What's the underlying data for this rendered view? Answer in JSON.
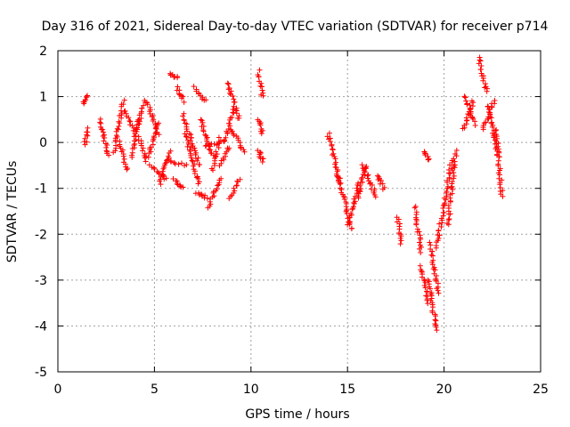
{
  "chart_data": {
    "type": "scatter",
    "title": "Day 316 of 2021, Sidereal Day-to-day VTEC variation (SDTVAR) for receiver p714",
    "xlabel": "GPS time / hours",
    "ylabel": "SDTVAR / TECUs",
    "xlim": [
      0,
      25
    ],
    "ylim": [
      -5,
      2
    ],
    "xticks": [
      0,
      5,
      10,
      15,
      20,
      25
    ],
    "yticks": [
      -5,
      -4,
      -3,
      -2,
      -1,
      0,
      1,
      2
    ],
    "grid": true,
    "marker": "+",
    "color": "#ff0000",
    "segments": [
      {
        "x": [
          1.35,
          1.5
        ],
        "y": [
          0.85,
          1.0
        ]
      },
      {
        "x": [
          1.4,
          1.55
        ],
        "y": [
          -0.05,
          0.3
        ]
      },
      {
        "x": [
          2.2,
          2.6
        ],
        "y": [
          0.5,
          -0.3
        ]
      },
      {
        "x": [
          2.9,
          3.4
        ],
        "y": [
          -0.2,
          0.9
        ]
      },
      {
        "x": [
          3.2,
          3.6
        ],
        "y": [
          0.0,
          -0.6
        ]
      },
      {
        "x": [
          3.5,
          4.0
        ],
        "y": [
          0.7,
          0.2
        ]
      },
      {
        "x": [
          3.8,
          4.2
        ],
        "y": [
          -0.3,
          0.5
        ]
      },
      {
        "x": [
          4.1,
          4.5
        ],
        "y": [
          0.3,
          0.9
        ]
      },
      {
        "x": [
          4.2,
          4.6
        ],
        "y": [
          0.1,
          -0.4
        ]
      },
      {
        "x": [
          4.6,
          5.2
        ],
        "y": [
          0.9,
          0.2
        ]
      },
      {
        "x": [
          4.7,
          5.2
        ],
        "y": [
          -0.3,
          0.4
        ]
      },
      {
        "x": [
          4.8,
          5.6
        ],
        "y": [
          -0.5,
          -0.8
        ]
      },
      {
        "x": [
          5.3,
          5.8
        ],
        "y": [
          -0.9,
          -0.2
        ]
      },
      {
        "x": [
          5.8,
          6.2
        ],
        "y": [
          1.5,
          1.4
        ]
      },
      {
        "x": [
          5.7,
          6.6
        ],
        "y": [
          -0.4,
          -0.5
        ]
      },
      {
        "x": [
          6.0,
          6.5
        ],
        "y": [
          -0.8,
          -1.0
        ]
      },
      {
        "x": [
          6.2,
          6.5
        ],
        "y": [
          1.2,
          0.9
        ]
      },
      {
        "x": [
          6.5,
          7.3
        ],
        "y": [
          0.6,
          -0.5
        ]
      },
      {
        "x": [
          6.6,
          7.3
        ],
        "y": [
          0.2,
          -0.9
        ]
      },
      {
        "x": [
          7.1,
          7.6
        ],
        "y": [
          1.2,
          0.9
        ]
      },
      {
        "x": [
          7.2,
          7.7
        ],
        "y": [
          -1.1,
          -1.2
        ]
      },
      {
        "x": [
          7.4,
          8.0
        ],
        "y": [
          0.5,
          -0.3
        ]
      },
      {
        "x": [
          7.6,
          8.4
        ],
        "y": [
          -0.1,
          0.0
        ]
      },
      {
        "x": [
          7.8,
          8.4
        ],
        "y": [
          -1.4,
          -0.8
        ]
      },
      {
        "x": [
          8.0,
          8.4
        ],
        "y": [
          -0.6,
          0.1
        ]
      },
      {
        "x": [
          8.4,
          8.9
        ],
        "y": [
          -0.5,
          -0.1
        ]
      },
      {
        "x": [
          8.6,
          9.1
        ],
        "y": [
          0.0,
          0.7
        ]
      },
      {
        "x": [
          8.8,
          9.4
        ],
        "y": [
          1.3,
          0.5
        ]
      },
      {
        "x": [
          8.9,
          9.4
        ],
        "y": [
          -1.2,
          -0.8
        ]
      },
      {
        "x": [
          9.0,
          9.6
        ],
        "y": [
          0.3,
          -0.2
        ]
      },
      {
        "x": [
          10.4,
          10.6
        ],
        "y": [
          1.55,
          1.0
        ]
      },
      {
        "x": [
          10.4,
          10.6
        ],
        "y": [
          0.5,
          0.2
        ]
      },
      {
        "x": [
          10.4,
          10.6
        ],
        "y": [
          -0.2,
          -0.4
        ]
      },
      {
        "x": [
          14.0,
          14.6
        ],
        "y": [
          0.2,
          -0.9
        ]
      },
      {
        "x": [
          14.5,
          15.2
        ],
        "y": [
          -0.7,
          -1.9
        ]
      },
      {
        "x": [
          15.0,
          15.6
        ],
        "y": [
          -1.8,
          -0.9
        ]
      },
      {
        "x": [
          15.5,
          16.0
        ],
        "y": [
          -1.2,
          -0.5
        ]
      },
      {
        "x": [
          15.8,
          16.5
        ],
        "y": [
          -0.5,
          -1.2
        ]
      },
      {
        "x": [
          16.5,
          16.9
        ],
        "y": [
          -0.7,
          -1.0
        ]
      },
      {
        "x": [
          17.6,
          17.8
        ],
        "y": [
          -1.65,
          -2.2
        ]
      },
      {
        "x": [
          18.5,
          18.8
        ],
        "y": [
          -1.4,
          -2.4
        ]
      },
      {
        "x": [
          18.8,
          19.2
        ],
        "y": [
          -2.7,
          -3.5
        ]
      },
      {
        "x": [
          19.0,
          19.2
        ],
        "y": [
          -0.2,
          -0.4
        ]
      },
      {
        "x": [
          19.2,
          19.6
        ],
        "y": [
          -3.0,
          -4.1
        ]
      },
      {
        "x": [
          19.3,
          19.7
        ],
        "y": [
          -2.2,
          -3.3
        ]
      },
      {
        "x": [
          19.6,
          20.4
        ],
        "y": [
          -2.3,
          -0.4
        ]
      },
      {
        "x": [
          20.2,
          20.6
        ],
        "y": [
          -1.8,
          -0.2
        ]
      },
      {
        "x": [
          21.0,
          21.5
        ],
        "y": [
          0.3,
          0.9
        ]
      },
      {
        "x": [
          21.1,
          21.6
        ],
        "y": [
          1.0,
          0.4
        ]
      },
      {
        "x": [
          21.8,
          22.2
        ],
        "y": [
          1.85,
          1.1
        ]
      },
      {
        "x": [
          22.0,
          22.6
        ],
        "y": [
          0.3,
          0.9
        ]
      },
      {
        "x": [
          22.3,
          22.8
        ],
        "y": [
          0.8,
          -0.3
        ]
      },
      {
        "x": [
          22.7,
          23.0
        ],
        "y": [
          0.3,
          -1.2
        ]
      }
    ]
  }
}
